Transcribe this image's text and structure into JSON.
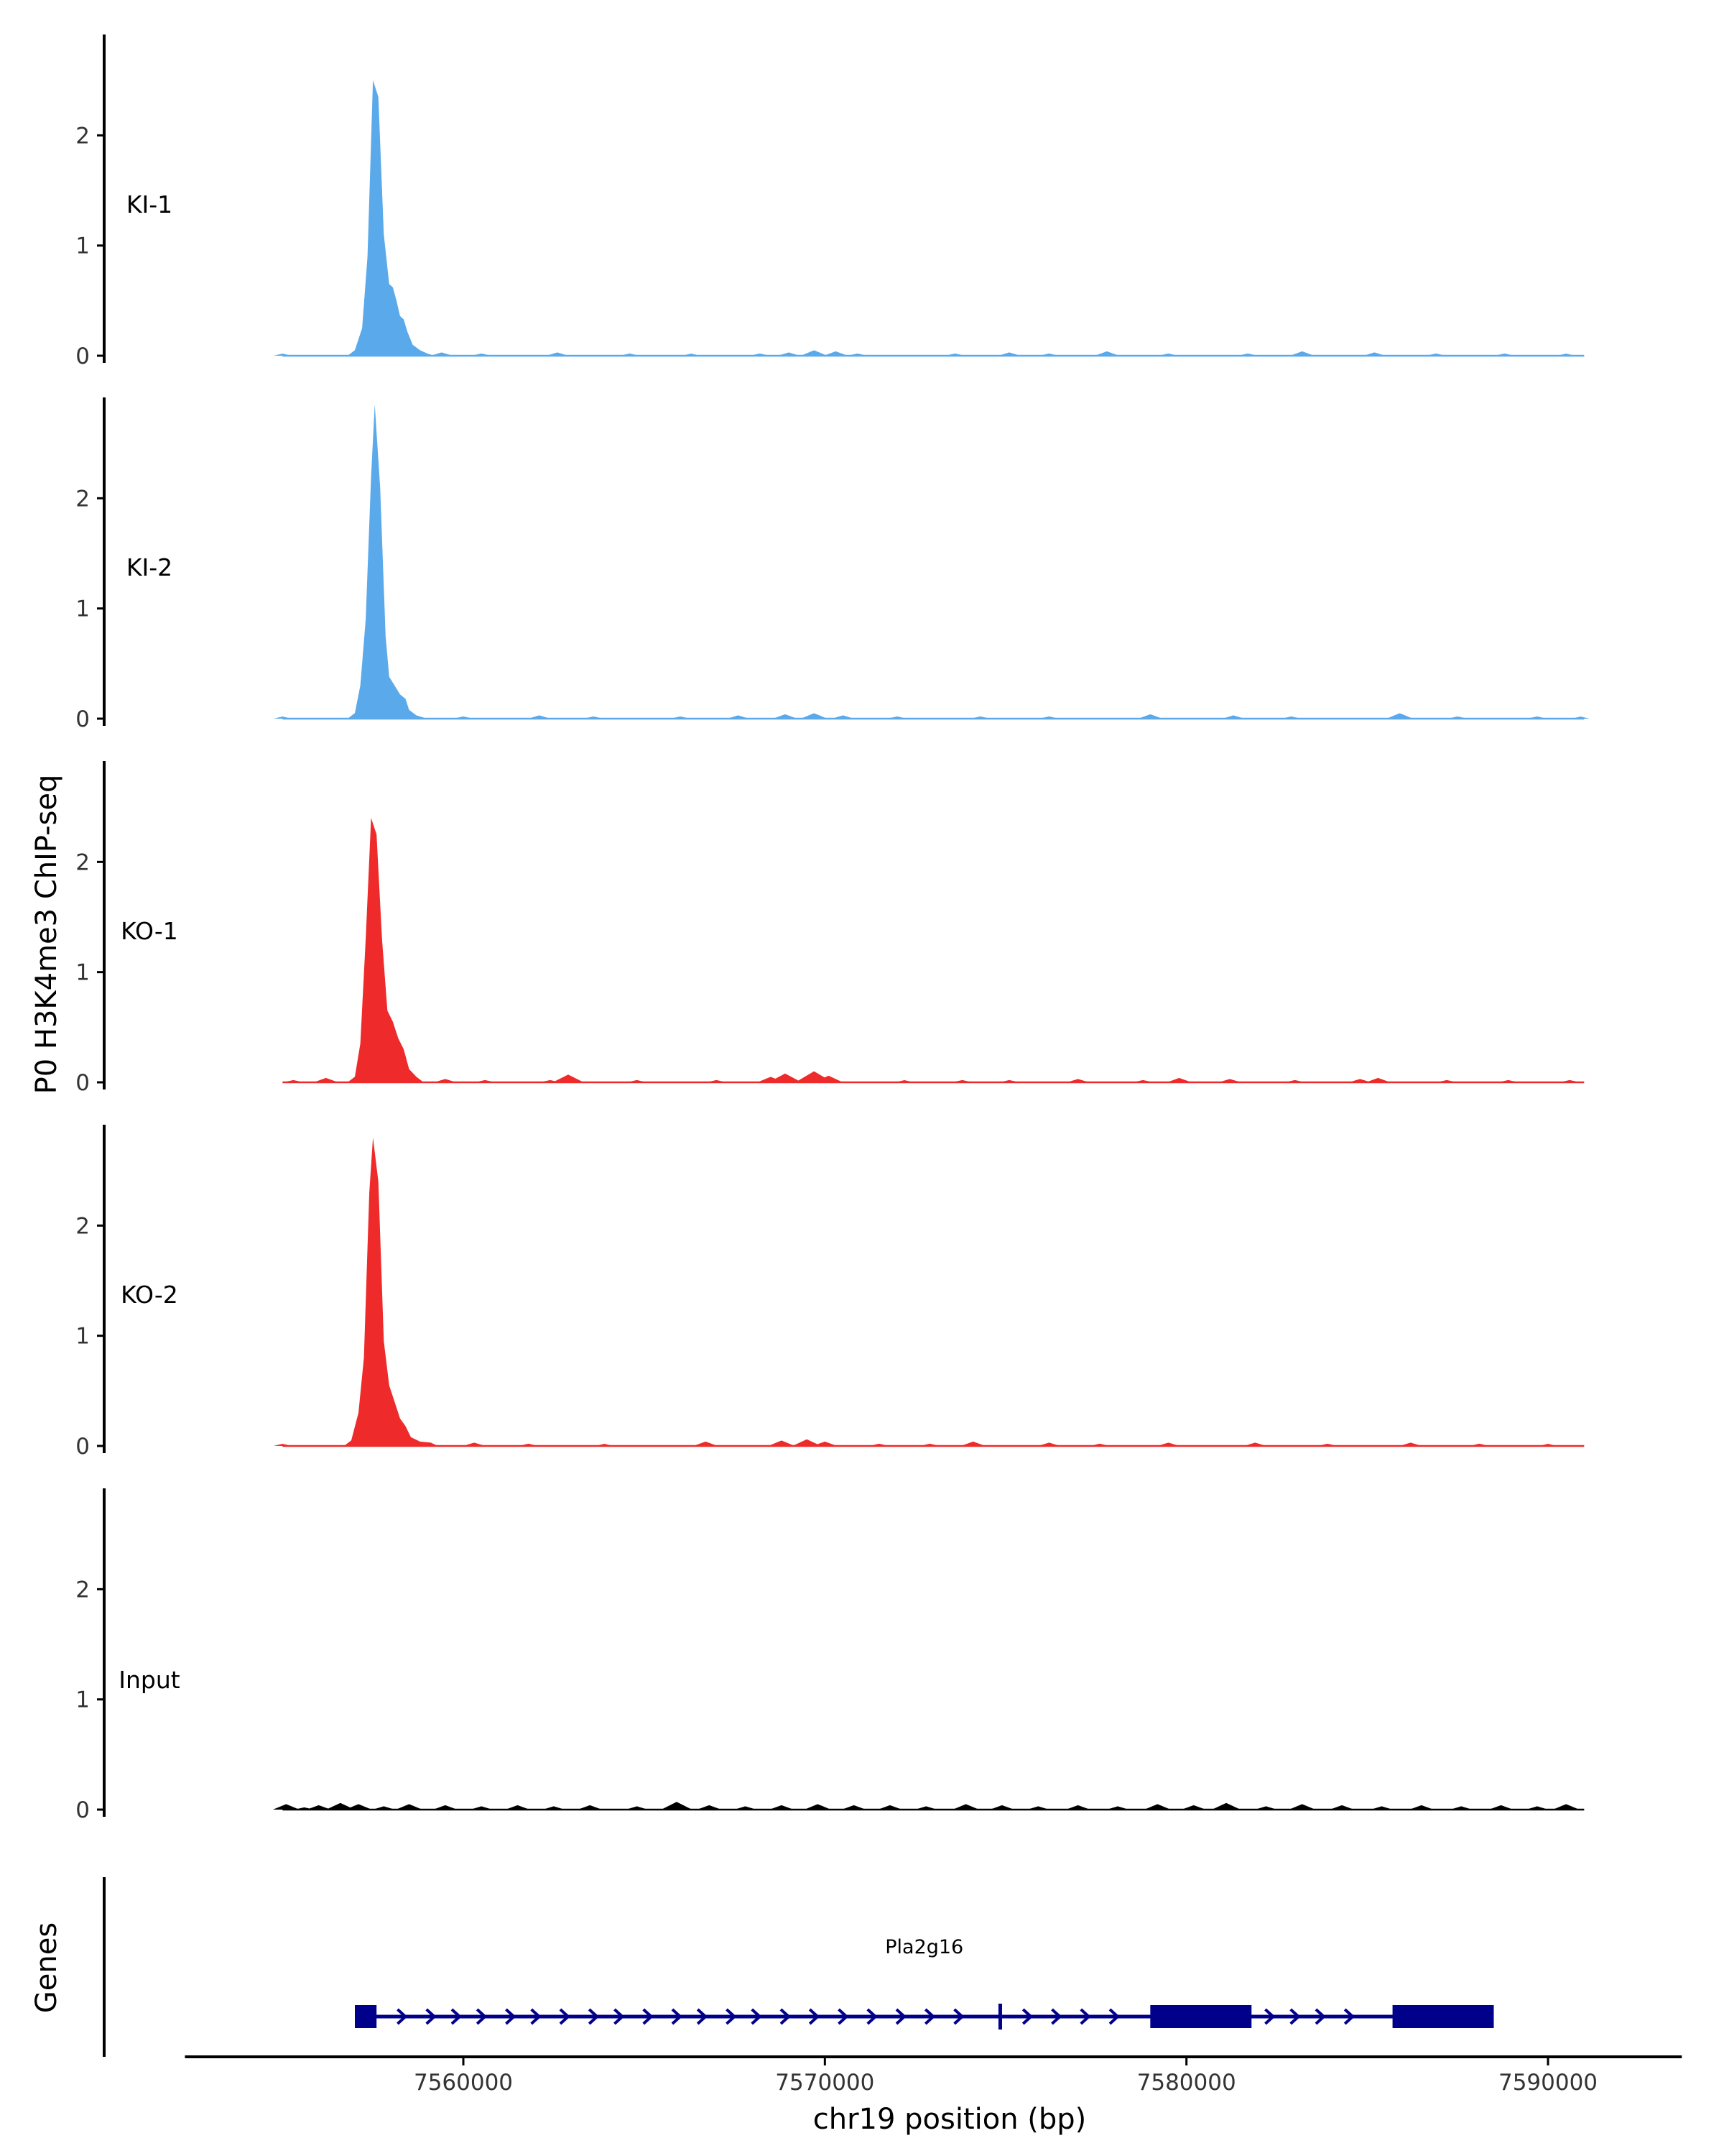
{
  "chart_data": {
    "type": "area",
    "ylabel": "P0 H3K4me3 ChIP-seq",
    "xlabel": "chr19 position (bp)",
    "xlim": [
      7555000,
      7591000
    ],
    "x_axis_range": [
      7552300,
      7593700
    ],
    "ylim": [
      0,
      3
    ],
    "yticks": [
      0,
      1,
      2
    ],
    "yticklabels": [
      "0",
      "1",
      "2"
    ],
    "xticks": [
      7560000,
      7570000,
      7580000,
      7590000
    ],
    "xticklabels": [
      "7560000",
      "7570000",
      "7580000",
      "7590000"
    ],
    "colors": {
      "KI": "#5aa9ea",
      "KO": "#ee2a2a",
      "Input": "#000000",
      "gene": "#00008b"
    },
    "tracks": [
      {
        "name": "KI-1",
        "color": "#5aa9ea",
        "peaks": [
          [
            7556800,
            0
          ],
          [
            7557000,
            0.05
          ],
          [
            7557200,
            0.25
          ],
          [
            7557350,
            0.9
          ],
          [
            7557500,
            2.5
          ],
          [
            7557650,
            2.35
          ],
          [
            7557800,
            1.1
          ],
          [
            7557950,
            0.65
          ],
          [
            7558050,
            0.62
          ],
          [
            7558150,
            0.5
          ],
          [
            7558250,
            0.36
          ],
          [
            7558350,
            0.33
          ],
          [
            7558450,
            0.22
          ],
          [
            7558600,
            0.1
          ],
          [
            7558800,
            0.05
          ],
          [
            7559000,
            0.02
          ],
          [
            7559200,
            0
          ]
        ],
        "noise": [
          [
            7555000,
            0.01
          ],
          [
            7559400,
            0.03
          ],
          [
            7560500,
            0.02
          ],
          [
            7562600,
            0.03
          ],
          [
            7564600,
            0.02
          ],
          [
            7566300,
            0.01
          ],
          [
            7568200,
            0.02
          ],
          [
            7569000,
            0.03
          ],
          [
            7569700,
            0.05
          ],
          [
            7570300,
            0.04
          ],
          [
            7570900,
            0.02
          ],
          [
            7573600,
            0.02
          ],
          [
            7575100,
            0.03
          ],
          [
            7576200,
            0.02
          ],
          [
            7577800,
            0.04
          ],
          [
            7579500,
            0.02
          ],
          [
            7581700,
            0.02
          ],
          [
            7583200,
            0.04
          ],
          [
            7585200,
            0.03
          ],
          [
            7586900,
            0.02
          ],
          [
            7588800,
            0.02
          ],
          [
            7590500,
            0.01
          ]
        ]
      },
      {
        "name": "KI-2",
        "color": "#5aa9ea",
        "peaks": [
          [
            7556800,
            0
          ],
          [
            7557000,
            0.05
          ],
          [
            7557150,
            0.3
          ],
          [
            7557300,
            0.9
          ],
          [
            7557450,
            2.2
          ],
          [
            7557550,
            2.85
          ],
          [
            7557700,
            2.1
          ],
          [
            7557850,
            0.75
          ],
          [
            7557950,
            0.38
          ],
          [
            7558100,
            0.3
          ],
          [
            7558250,
            0.22
          ],
          [
            7558400,
            0.18
          ],
          [
            7558500,
            0.08
          ],
          [
            7558700,
            0.03
          ],
          [
            7559000,
            0
          ]
        ],
        "noise": [
          [
            7555000,
            0.01
          ],
          [
            7560000,
            0.02
          ],
          [
            7562100,
            0.03
          ],
          [
            7563600,
            0.02
          ],
          [
            7566000,
            0.02
          ],
          [
            7567600,
            0.03
          ],
          [
            7568900,
            0.04
          ],
          [
            7569700,
            0.05
          ],
          [
            7570500,
            0.03
          ],
          [
            7572000,
            0.02
          ],
          [
            7574300,
            0.02
          ],
          [
            7576200,
            0.02
          ],
          [
            7579000,
            0.04
          ],
          [
            7581300,
            0.03
          ],
          [
            7582900,
            0.02
          ],
          [
            7585900,
            0.05
          ],
          [
            7587500,
            0.02
          ],
          [
            7589700,
            0.02
          ],
          [
            7590900,
            0.01
          ]
        ]
      },
      {
        "name": "KO-1",
        "color": "#ee2a2a",
        "peaks": [
          [
            7556800,
            0
          ],
          [
            7557000,
            0.05
          ],
          [
            7557150,
            0.35
          ],
          [
            7557300,
            1.3
          ],
          [
            7557450,
            2.4
          ],
          [
            7557600,
            2.25
          ],
          [
            7557750,
            1.3
          ],
          [
            7557900,
            0.65
          ],
          [
            7558050,
            0.55
          ],
          [
            7558200,
            0.4
          ],
          [
            7558350,
            0.3
          ],
          [
            7558500,
            0.12
          ],
          [
            7558700,
            0.05
          ],
          [
            7558900,
            0
          ]
        ],
        "noise": [
          [
            7555300,
            0.02
          ],
          [
            7556200,
            0.04
          ],
          [
            7559500,
            0.03
          ],
          [
            7560600,
            0.02
          ],
          [
            7562400,
            0.02
          ],
          [
            7562900,
            0.07
          ],
          [
            7564800,
            0.02
          ],
          [
            7567000,
            0.02
          ],
          [
            7568500,
            0.05
          ],
          [
            7568900,
            0.08
          ],
          [
            7569400,
            0.02
          ],
          [
            7569700,
            0.1
          ],
          [
            7570100,
            0.06
          ],
          [
            7572200,
            0.01
          ],
          [
            7573800,
            0.02
          ],
          [
            7575100,
            0.02
          ],
          [
            7577000,
            0.03
          ],
          [
            7578800,
            0.02
          ],
          [
            7579800,
            0.04
          ],
          [
            7581200,
            0.03
          ],
          [
            7583000,
            0.02
          ],
          [
            7584800,
            0.03
          ],
          [
            7585300,
            0.04
          ],
          [
            7587200,
            0.02
          ],
          [
            7588900,
            0.02
          ],
          [
            7590600,
            0.02
          ]
        ]
      },
      {
        "name": "KO-2",
        "color": "#ee2a2a",
        "peaks": [
          [
            7556700,
            0
          ],
          [
            7556900,
            0.05
          ],
          [
            7557100,
            0.3
          ],
          [
            7557250,
            0.8
          ],
          [
            7557400,
            2.3
          ],
          [
            7557500,
            2.8
          ],
          [
            7557650,
            2.4
          ],
          [
            7557800,
            0.95
          ],
          [
            7557950,
            0.55
          ],
          [
            7558100,
            0.4
          ],
          [
            7558250,
            0.25
          ],
          [
            7558400,
            0.18
          ],
          [
            7558550,
            0.08
          ],
          [
            7558800,
            0.04
          ],
          [
            7559100,
            0.03
          ],
          [
            7559300,
            0
          ]
        ],
        "noise": [
          [
            7555000,
            0.01
          ],
          [
            7560300,
            0.03
          ],
          [
            7561800,
            0.02
          ],
          [
            7563900,
            0.01
          ],
          [
            7566700,
            0.04
          ],
          [
            7568800,
            0.05
          ],
          [
            7569500,
            0.06
          ],
          [
            7570000,
            0.04
          ],
          [
            7571500,
            0.02
          ],
          [
            7572900,
            0.02
          ],
          [
            7574100,
            0.04
          ],
          [
            7576200,
            0.03
          ],
          [
            7577600,
            0.02
          ],
          [
            7579500,
            0.03
          ],
          [
            7581900,
            0.03
          ],
          [
            7583900,
            0.02
          ],
          [
            7586200,
            0.03
          ],
          [
            7588100,
            0.02
          ],
          [
            7590000,
            0.01
          ]
        ]
      },
      {
        "name": "Input",
        "color": "#000000",
        "peaks": [],
        "noise": [
          [
            7555100,
            0.05
          ],
          [
            7555600,
            0.02
          ],
          [
            7556000,
            0.04
          ],
          [
            7556600,
            0.06
          ],
          [
            7557100,
            0.05
          ],
          [
            7557800,
            0.03
          ],
          [
            7558500,
            0.05
          ],
          [
            7559500,
            0.04
          ],
          [
            7560500,
            0.03
          ],
          [
            7561500,
            0.04
          ],
          [
            7562500,
            0.03
          ],
          [
            7563500,
            0.04
          ],
          [
            7564800,
            0.03
          ],
          [
            7565900,
            0.07
          ],
          [
            7566800,
            0.04
          ],
          [
            7567800,
            0.03
          ],
          [
            7568800,
            0.04
          ],
          [
            7569800,
            0.05
          ],
          [
            7570800,
            0.04
          ],
          [
            7571800,
            0.04
          ],
          [
            7572800,
            0.03
          ],
          [
            7573900,
            0.05
          ],
          [
            7574900,
            0.04
          ],
          [
            7575900,
            0.03
          ],
          [
            7577000,
            0.04
          ],
          [
            7578100,
            0.03
          ],
          [
            7579200,
            0.05
          ],
          [
            7580200,
            0.04
          ],
          [
            7581100,
            0.06
          ],
          [
            7582200,
            0.03
          ],
          [
            7583200,
            0.05
          ],
          [
            7584300,
            0.04
          ],
          [
            7585400,
            0.03
          ],
          [
            7586500,
            0.04
          ],
          [
            7587600,
            0.03
          ],
          [
            7588700,
            0.04
          ],
          [
            7589700,
            0.03
          ],
          [
            7590500,
            0.05
          ]
        ]
      }
    ],
    "genes_track": {
      "label": "Genes",
      "genes": [
        {
          "name": "Pla2g16",
          "strand": "+",
          "start": 7557000,
          "end": 7588500,
          "exons": [
            [
              7557000,
              7557600
            ],
            [
              7574800,
              7574900
            ],
            [
              7579000,
              7581800
            ],
            [
              7585700,
              7588500
            ]
          ],
          "direction_markers": [
            7558300,
            7559100,
            7559800,
            7560500,
            7561300,
            7562000,
            7562800,
            7563600,
            7564300,
            7565100,
            7565900,
            7566600,
            7567400,
            7568100,
            7568900,
            7569700,
            7570500,
            7571300,
            7572100,
            7572900,
            7573700,
            7575600,
            7576400,
            7577200,
            7578000,
            7582300,
            7583000,
            7583700,
            7584500
          ]
        }
      ]
    }
  }
}
